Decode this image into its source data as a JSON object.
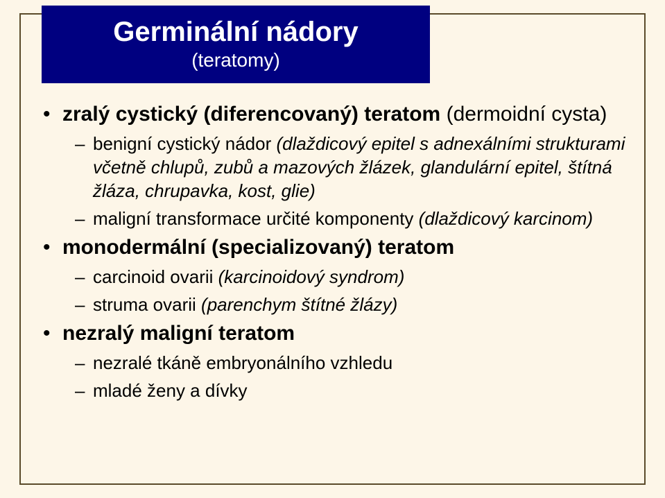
{
  "colors": {
    "background": "#fdf6e8",
    "frame_border": "#5a4a2a",
    "title_box_bg": "#000080",
    "title_text": "#ffffff",
    "body_text": "#000000"
  },
  "typography": {
    "title_main_size": 40,
    "title_sub_size": 28,
    "l1_size": 30,
    "l2_size": 26,
    "font_family": "Arial"
  },
  "title": {
    "main": "Germinální nádory",
    "sub": "(teratomy)"
  },
  "bullets": [
    {
      "text_bold": "zralý cystický (diferencovaný) teratom ",
      "text_plain": "(dermoidní cysta)",
      "children": [
        {
          "lead": "benigní cystický nádor ",
          "italic": "(dlaždicový epitel s adnexálními strukturami včetně chlupů, zubů a mazových žlázek, glandulární epitel, štítná žláza, chrupavka, kost, glie)"
        },
        {
          "lead": "maligní transformace určité komponenty ",
          "italic": "(dlaždicový karcinom)"
        }
      ]
    },
    {
      "text_bold": "monodermální (specializovaný) teratom",
      "text_plain": "",
      "children": [
        {
          "lead": "carcinoid ovarii ",
          "italic": "(karcinoidový syndrom)"
        },
        {
          "lead": "struma ovarii ",
          "italic": "(parenchym štítné žlázy)"
        }
      ]
    },
    {
      "text_bold": "nezralý maligní teratom",
      "text_plain": "",
      "children": [
        {
          "lead": "nezralé tkáně embryonálního vzhledu",
          "italic": ""
        },
        {
          "lead": "mladé ženy a dívky",
          "italic": ""
        }
      ]
    }
  ]
}
